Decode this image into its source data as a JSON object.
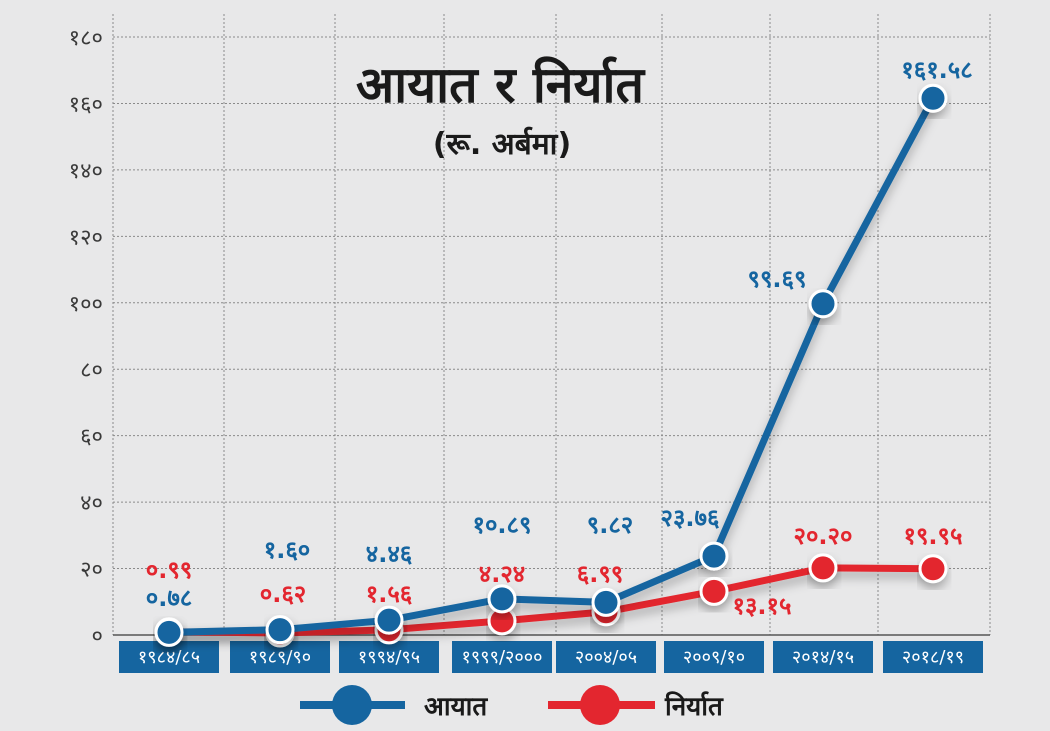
{
  "chart_data": {
    "type": "line",
    "title": "आयात र निर्यात",
    "subtitle": "(रू. अर्बमा)",
    "categories": [
      "१९८४/८५",
      "१९८९/९०",
      "१९९४/९५",
      "१९९९/२०००",
      "२००४/०५",
      "२००९/१०",
      "२०१४/१५",
      "२०१८/१९"
    ],
    "ylim": [
      0,
      180
    ],
    "yticks": [
      0,
      20,
      40,
      60,
      80,
      100,
      120,
      140,
      160,
      180
    ],
    "ytick_labels": [
      "०",
      "२०",
      "४०",
      "६०",
      "८०",
      "१००",
      "१२०",
      "१४०",
      "१६०",
      "१८०"
    ],
    "grid": true,
    "legend_position": "bottom",
    "series": [
      {
        "name": "आयात",
        "color": "#1565a0",
        "values": [
          0.78,
          1.6,
          4.46,
          10.89,
          9.82,
          23.76,
          99.69,
          161.58
        ],
        "labels": [
          "०.७८",
          "१.६०",
          "४.४६",
          "१०.८९",
          "९.८२",
          "२३.७६",
          "९९.६९",
          "१६१.५८"
        ]
      },
      {
        "name": "निर्यात",
        "color": "#e3262f",
        "values": [
          0.99,
          0.62,
          1.56,
          4.24,
          6.99,
          13.15,
          20.2,
          19.95
        ],
        "labels": [
          "०.९९",
          "०.६२",
          "१.५६",
          "४.२४",
          "६.९९",
          "१३.१५",
          "२०.२०",
          "१९.९५"
        ]
      }
    ]
  }
}
